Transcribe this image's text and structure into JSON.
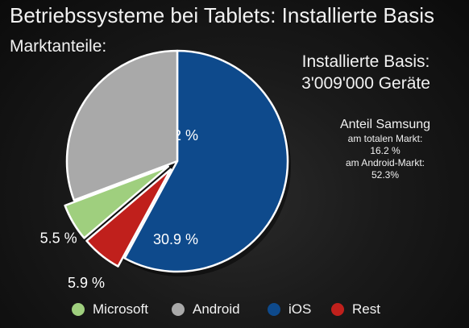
{
  "title": "Betriebssysteme bei Tablets: Installierte Basis",
  "subtitle": "Marktanteile:",
  "info": {
    "line1": "Installierte Basis:",
    "line2": "3'009'000 Geräte",
    "samsung_heading": "Anteil Samsung",
    "samsung_total_label": "am totalen Markt:",
    "samsung_total_value": "16.2 %",
    "samsung_android_label": "am Android-Markt:",
    "samsung_android_value": "52.3%"
  },
  "chart_data": {
    "type": "pie",
    "title": "Betriebssysteme bei Tablets: Installierte Basis",
    "slices": [
      {
        "name": "iOS",
        "value": 58.2,
        "label": "58.2 %",
        "color": "#0e4a8c",
        "exploded": false
      },
      {
        "name": "Rest",
        "value": 5.9,
        "label": "5.9 %",
        "color": "#c0201c",
        "exploded": true
      },
      {
        "name": "Microsoft",
        "value": 5.5,
        "label": "5.5 %",
        "color": "#9fcf7e",
        "exploded": true
      },
      {
        "name": "Android",
        "value": 30.9,
        "label": "30.9 %",
        "color": "#a9a9a9",
        "exploded": false
      }
    ],
    "legend_position": "bottom",
    "legend_order": [
      "Microsoft",
      "Android",
      "iOS",
      "Rest"
    ]
  }
}
